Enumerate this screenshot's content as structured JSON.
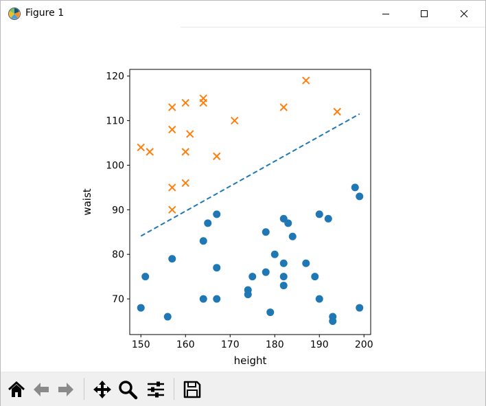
{
  "window": {
    "title": "Figure 1",
    "app_icon": "matplotlib-icon",
    "controls": [
      "minimize-icon",
      "maximize-icon",
      "close-icon"
    ]
  },
  "toolbar": {
    "buttons": [
      {
        "name": "home-button",
        "icon": "home-icon"
      },
      {
        "name": "back-button",
        "icon": "arrow-left-icon"
      },
      {
        "name": "forward-button",
        "icon": "arrow-right-icon"
      },
      {
        "name": "pan-button",
        "icon": "move-icon"
      },
      {
        "name": "zoom-button",
        "icon": "magnifier-icon"
      },
      {
        "name": "configure-subplots-button",
        "icon": "sliders-icon"
      },
      {
        "name": "save-button",
        "icon": "floppy-disk-icon"
      }
    ]
  },
  "chart_data": {
    "type": "scatter",
    "xlabel": "height",
    "ylabel": "waist",
    "xlim": [
      147.5,
      201.5
    ],
    "ylim": [
      62,
      121.5
    ],
    "xticks": [
      150,
      160,
      170,
      180,
      190,
      200
    ],
    "yticks": [
      70,
      80,
      90,
      100,
      110,
      120
    ],
    "grid": false,
    "colors": {
      "class0": "#1f77b4",
      "class1": "#ff7f0e",
      "boundary": "#1f77b4"
    },
    "series": [
      {
        "marker": "circle",
        "color": "#1f77b4",
        "points": [
          [
            150,
            68
          ],
          [
            151,
            75
          ],
          [
            156,
            66
          ],
          [
            157,
            79
          ],
          [
            164,
            83
          ],
          [
            164,
            70
          ],
          [
            165,
            87
          ],
          [
            167,
            89
          ],
          [
            167,
            77
          ],
          [
            167,
            70
          ],
          [
            174,
            72
          ],
          [
            174,
            71
          ],
          [
            175,
            75
          ],
          [
            178,
            85
          ],
          [
            178,
            76
          ],
          [
            179,
            67
          ],
          [
            180,
            80
          ],
          [
            182,
            88
          ],
          [
            182,
            78
          ],
          [
            182,
            75
          ],
          [
            182,
            73
          ],
          [
            183,
            87
          ],
          [
            184,
            84
          ],
          [
            187,
            78
          ],
          [
            189,
            75
          ],
          [
            190,
            89
          ],
          [
            190,
            70
          ],
          [
            192,
            88
          ],
          [
            193,
            66
          ],
          [
            193,
            65
          ],
          [
            198,
            95
          ],
          [
            199,
            93
          ],
          [
            199,
            68
          ]
        ]
      },
      {
        "marker": "x",
        "color": "#ff7f0e",
        "points": [
          [
            150,
            104
          ],
          [
            152,
            103
          ],
          [
            157,
            113
          ],
          [
            157,
            108
          ],
          [
            157,
            95
          ],
          [
            157,
            90
          ],
          [
            160,
            114
          ],
          [
            160,
            103
          ],
          [
            160,
            96
          ],
          [
            161,
            107
          ],
          [
            164,
            115
          ],
          [
            164,
            114
          ],
          [
            167,
            102
          ],
          [
            171,
            110
          ],
          [
            182,
            113
          ],
          [
            187,
            119
          ],
          [
            194,
            112
          ]
        ]
      }
    ],
    "boundary_line": {
      "style": "dashed",
      "x": [
        150,
        199
      ],
      "y": [
        84.1,
        111.5
      ]
    }
  }
}
